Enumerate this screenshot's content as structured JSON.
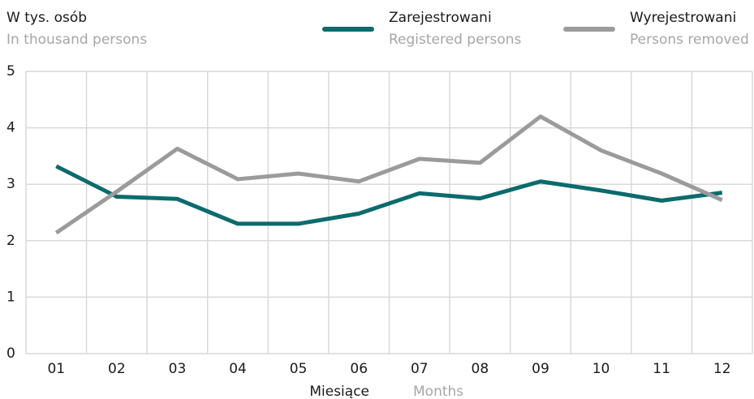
{
  "chart_data": {
    "type": "line",
    "ylabel": "W tys. osób",
    "ylabel_en": "In thousand persons",
    "xlabel": "Miesiące",
    "xlabel_en": "Months",
    "categories": [
      "01",
      "02",
      "03",
      "04",
      "05",
      "06",
      "07",
      "08",
      "09",
      "10",
      "11",
      "12"
    ],
    "series": [
      {
        "name": "Zarejestrowani",
        "name_en": "Registered persons",
        "color": "#0b6b6d",
        "values": [
          3.32,
          2.78,
          2.74,
          2.3,
          2.3,
          2.48,
          2.84,
          2.75,
          3.05,
          2.89,
          2.71,
          2.85
        ]
      },
      {
        "name": "Wyrejestrowani",
        "name_en": "Persons removed",
        "color": "#9b9b9d",
        "values": [
          2.14,
          2.87,
          3.63,
          3.09,
          3.19,
          3.05,
          3.45,
          3.38,
          4.2,
          3.6,
          3.19,
          2.72
        ]
      }
    ],
    "ylim": [
      0,
      5
    ],
    "yticks": [
      0,
      1,
      2,
      3,
      4,
      5
    ],
    "grid": true
  }
}
